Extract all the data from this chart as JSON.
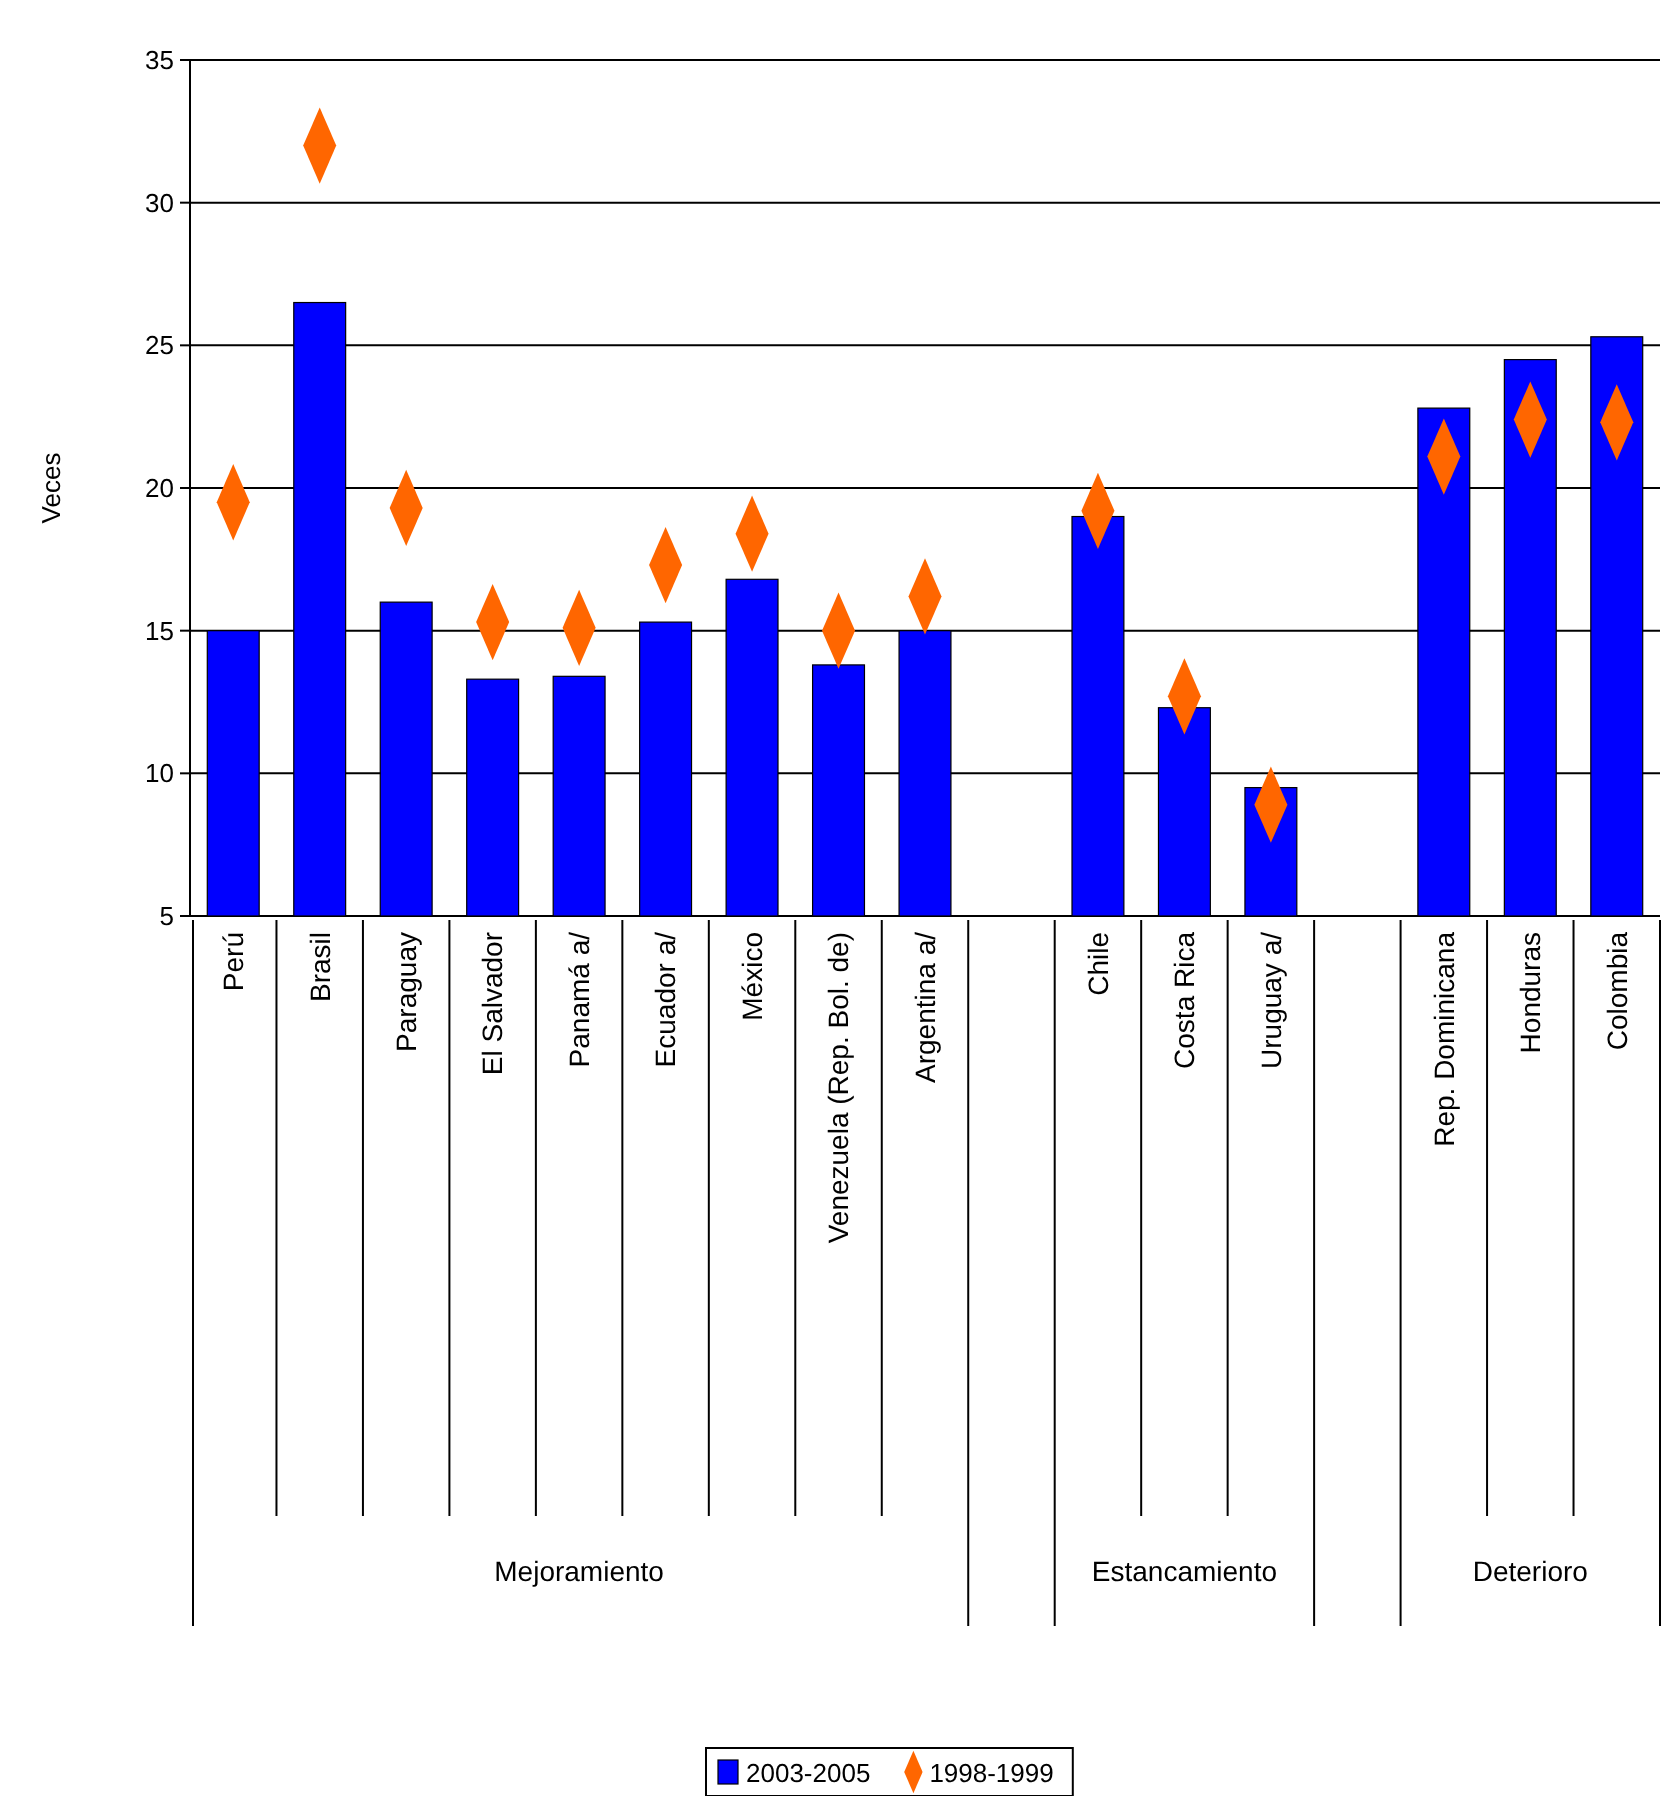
{
  "chart_data": {
    "type": "bar",
    "ylabel": "Veces",
    "categories": [
      "Perú",
      "Brasil",
      "Paraguay",
      "El Salvador",
      "Panamá a/",
      "Ecuador a/",
      "México",
      "Venezuela (Rep. Bol. de)",
      "Argentina a/",
      null,
      "Chile",
      "Costa Rica",
      "Uruguay a/",
      null,
      "Rep. Dominicana",
      "Honduras",
      "Colombia"
    ],
    "series": [
      {
        "name": "2003-2005",
        "color": "#0000ff",
        "values": [
          15.0,
          26.5,
          16.0,
          13.3,
          13.4,
          15.3,
          16.8,
          13.8,
          15.0,
          null,
          19.0,
          12.3,
          9.5,
          null,
          22.8,
          24.5,
          25.3
        ]
      },
      {
        "name": "1998-1999",
        "type": "scatter",
        "color": "#ff6600",
        "values": [
          19.5,
          32.0,
          19.3,
          15.3,
          15.1,
          17.3,
          18.4,
          15.0,
          16.2,
          null,
          19.2,
          12.7,
          8.9,
          null,
          21.1,
          22.4,
          22.3
        ]
      }
    ],
    "ylim": [
      5,
      35
    ],
    "yticks": [
      5,
      10,
      15,
      20,
      25,
      30,
      35
    ],
    "grid": "y",
    "marker": "diamond",
    "legend": "bottom",
    "annotations": [
      "Mejoramiento",
      "Estancamiento",
      "Deterioro"
    ]
  }
}
